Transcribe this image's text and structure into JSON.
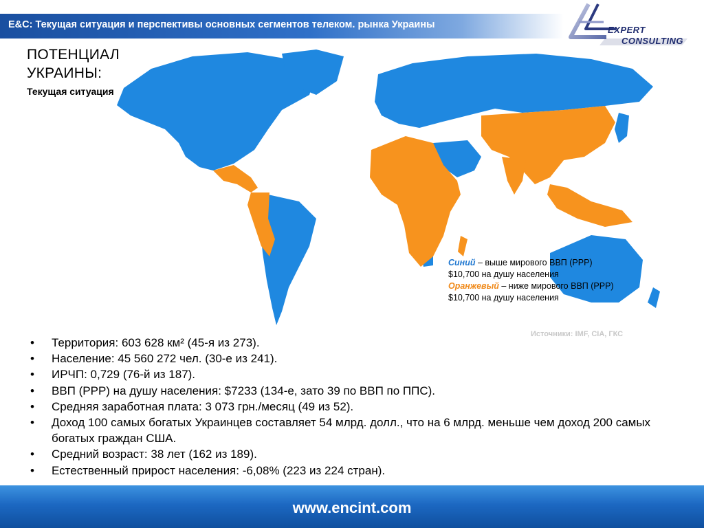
{
  "header": {
    "title": "E&C: Текущая ситуация и перспективы основных сегментов телеком.  рынка Украины"
  },
  "logo": {
    "line1": "EXPERT",
    "line2": "CONSULTING",
    "brand_color": "#1e2b6e"
  },
  "section": {
    "title_line1": "ПОТЕНЦИАЛ",
    "title_line2": "УКРАИНЫ:",
    "subtitle": "Текущая ситуация"
  },
  "map": {
    "colors": {
      "above": "#1f88e0",
      "below": "#f7931e"
    }
  },
  "legend": {
    "blue_word": "Синий",
    "blue_text": " – выше мирового ВВП (PPP) $10,700 на душу населения",
    "orange_word": "Оранжевый",
    "orange_text": " – ниже мирового ВВП (PPP) $10,700 на душу населения"
  },
  "sources": "Источники: IMF, CIA, ГКС",
  "bullets": [
    "Территория: 603 628 км² (45-я из 273).",
    "Население: 45 560 272 чел. (30-е из 241).",
    "ИРЧП: 0,729 (76-й из 187).",
    "ВВП (PPP) на душу населения: $7233 (134-е, зато 39 по ВВП по ППС).",
    "Средняя заработная плата: 3 073 грн./месяц (49 из 52).",
    "Доход 100 самых богатых Украинцев составляет 54 млрд. долл., что на 6 млрд. меньше чем доход 200 самых богатых граждан США.",
    "Средний возраст: 38 лет (162 из 189).",
    "Естественный прирост населения: -6,08% (223 из 224 стран)."
  ],
  "bullet_symbol": "•",
  "footer": {
    "url": "www.encint.com"
  }
}
